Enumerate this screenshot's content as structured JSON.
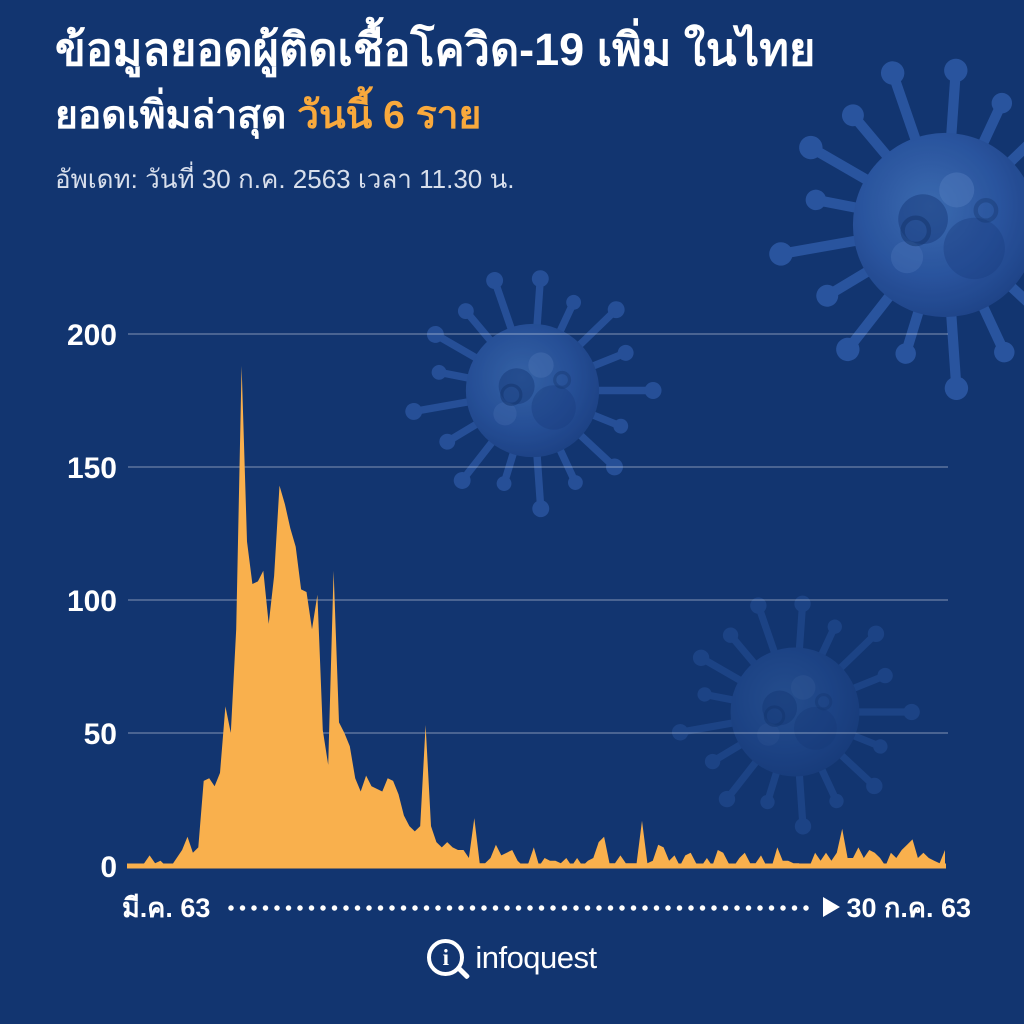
{
  "header": {
    "title": "ข้อมูลยอดผู้ติดเชื้อโควิด-19 เพิ่ม ในไทย",
    "subtitle_prefix": "ยอดเพิ่มล่าสุด ",
    "subtitle_highlight": "วันนี้ 6 ราย",
    "update_line": "อัพเดท: วันที่ 30 ก.ค. 2563 เวลา 11.30 น."
  },
  "colors": {
    "background": "#123570",
    "area_orange": "#F9B04D",
    "highlight_orange": "#F9A93C",
    "text_white": "#FFFFFF",
    "muted_text": "#D8DFEC",
    "gridline": "rgba(255,255,255,0.38)",
    "virus_blue": "#2C57A2"
  },
  "chart_data": {
    "type": "area",
    "title": "Daily new COVID-19 cases in Thailand, Mar 2020 - 30 Jul 2020",
    "x_start_label": "มี.ค. 63",
    "x_end_label": "30 ก.ค. 63",
    "x_unit": "day (1 มี.ค. 2563 – 30 ก.ค. 2563)",
    "ylim": [
      0,
      200
    ],
    "yticks": [
      0,
      50,
      100,
      150,
      200
    ],
    "grid": true,
    "legend": "none",
    "peak_value": 188,
    "latest_value": 6,
    "values": [
      0,
      0,
      0,
      1,
      4,
      1,
      2,
      0,
      0,
      3,
      6,
      11,
      5,
      7,
      32,
      33,
      30,
      35,
      60,
      50,
      89,
      188,
      122,
      106,
      107,
      111,
      91,
      109,
      143,
      136,
      127,
      120,
      104,
      103,
      89,
      102,
      51,
      38,
      111,
      54,
      50,
      45,
      33,
      28,
      34,
      30,
      29,
      28,
      33,
      32,
      27,
      19,
      15,
      13,
      15,
      53,
      15,
      9,
      7,
      9,
      7,
      6,
      6,
      3,
      18,
      1,
      1,
      3,
      8,
      4,
      5,
      6,
      2,
      0,
      1,
      7,
      0,
      3,
      2,
      2,
      1,
      3,
      0,
      3,
      0,
      2,
      3,
      9,
      11,
      1,
      1,
      4,
      1,
      1,
      1,
      17,
      1,
      2,
      8,
      7,
      2,
      4,
      0,
      4,
      5,
      1,
      0,
      3,
      0,
      6,
      5,
      1,
      0,
      3,
      5,
      1,
      1,
      4,
      0,
      0,
      7,
      2,
      2,
      1,
      1,
      0,
      0,
      5,
      2,
      5,
      2,
      5,
      14,
      3,
      3,
      7,
      3,
      6,
      5,
      3,
      0,
      5,
      3,
      6,
      8,
      10,
      3,
      5,
      3,
      2,
      1,
      6
    ]
  },
  "footer": {
    "logo_text": "infoquest",
    "logo_icon_letter": "i"
  }
}
